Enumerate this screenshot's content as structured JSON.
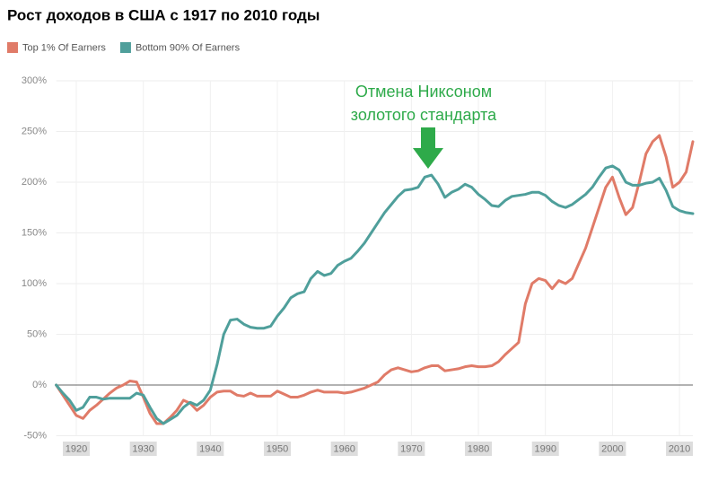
{
  "chart_data": {
    "type": "line",
    "title": "Рост доходов в США с 1917 по 2010 годы",
    "annotation": [
      "Отмена Никсоном",
      "золотого стандарта"
    ],
    "x": [
      1917,
      1918,
      1919,
      1920,
      1921,
      1922,
      1923,
      1924,
      1925,
      1926,
      1927,
      1928,
      1929,
      1930,
      1931,
      1932,
      1933,
      1934,
      1935,
      1936,
      1937,
      1938,
      1939,
      1940,
      1941,
      1942,
      1943,
      1944,
      1945,
      1946,
      1947,
      1948,
      1949,
      1950,
      1951,
      1952,
      1953,
      1954,
      1955,
      1956,
      1957,
      1958,
      1959,
      1960,
      1961,
      1962,
      1963,
      1964,
      1965,
      1966,
      1967,
      1968,
      1969,
      1970,
      1971,
      1972,
      1973,
      1974,
      1975,
      1976,
      1977,
      1978,
      1979,
      1980,
      1981,
      1982,
      1983,
      1984,
      1985,
      1986,
      1987,
      1988,
      1989,
      1990,
      1991,
      1992,
      1993,
      1994,
      1995,
      1996,
      1997,
      1998,
      1999,
      2000,
      2001,
      2002,
      2003,
      2004,
      2005,
      2006,
      2007,
      2008,
      2009,
      2010,
      2011,
      2012
    ],
    "series": [
      {
        "name": "Top 1% Of Earners",
        "color": "#e07b68",
        "values": [
          0,
          -10,
          -20,
          -30,
          -33,
          -25,
          -20,
          -14,
          -8,
          -3,
          0,
          4,
          3,
          -12,
          -28,
          -38,
          -38,
          -32,
          -25,
          -15,
          -18,
          -25,
          -20,
          -12,
          -7,
          -6,
          -6,
          -10,
          -11,
          -8,
          -11,
          -11,
          -11,
          -6,
          -9,
          -12,
          -12,
          -10,
          -7,
          -5,
          -7,
          -7,
          -7,
          -8,
          -7,
          -5,
          -3,
          0,
          3,
          10,
          15,
          17,
          15,
          13,
          14,
          17,
          19,
          19,
          14,
          15,
          16,
          18,
          19,
          18,
          18,
          19,
          23,
          30,
          36,
          42,
          80,
          100,
          105,
          103,
          95,
          103,
          100,
          105,
          120,
          135,
          155,
          175,
          195,
          205,
          185,
          168,
          175,
          200,
          228,
          240,
          246,
          225,
          195,
          200,
          210,
          240
        ]
      },
      {
        "name": "Bottom 90% Of Earners",
        "color": "#4f9f9b",
        "values": [
          0,
          -8,
          -15,
          -25,
          -22,
          -12,
          -12,
          -14,
          -13,
          -13,
          -13,
          -13,
          -8,
          -10,
          -22,
          -33,
          -38,
          -34,
          -30,
          -22,
          -17,
          -20,
          -15,
          -5,
          20,
          50,
          64,
          65,
          60,
          57,
          56,
          56,
          58,
          68,
          76,
          86,
          90,
          92,
          105,
          112,
          108,
          110,
          118,
          122,
          125,
          132,
          140,
          150,
          160,
          170,
          178,
          186,
          192,
          193,
          195,
          205,
          207,
          198,
          185,
          190,
          193,
          198,
          195,
          188,
          183,
          177,
          176,
          182,
          186,
          187,
          188,
          190,
          190,
          187,
          181,
          177,
          175,
          178,
          183,
          188,
          195,
          205,
          214,
          216,
          212,
          200,
          197,
          197,
          199,
          200,
          204,
          192,
          176,
          172,
          170,
          169
        ]
      }
    ],
    "xlim": [
      1917,
      2012
    ],
    "xticks": [
      1920,
      1930,
      1940,
      1950,
      1960,
      1970,
      1980,
      1990,
      2000,
      2010
    ],
    "ylim": [
      -50,
      300
    ],
    "yticks": [
      {
        "value": -50,
        "label": "-50%"
      },
      {
        "value": 0,
        "label": "0%"
      },
      {
        "value": 50,
        "label": "50%"
      },
      {
        "value": 100,
        "label": "100%"
      },
      {
        "value": 150,
        "label": "150%"
      },
      {
        "value": 200,
        "label": "200%"
      },
      {
        "value": 250,
        "label": "250%"
      },
      {
        "value": 300,
        "label": "300%"
      }
    ],
    "grid": true
  }
}
